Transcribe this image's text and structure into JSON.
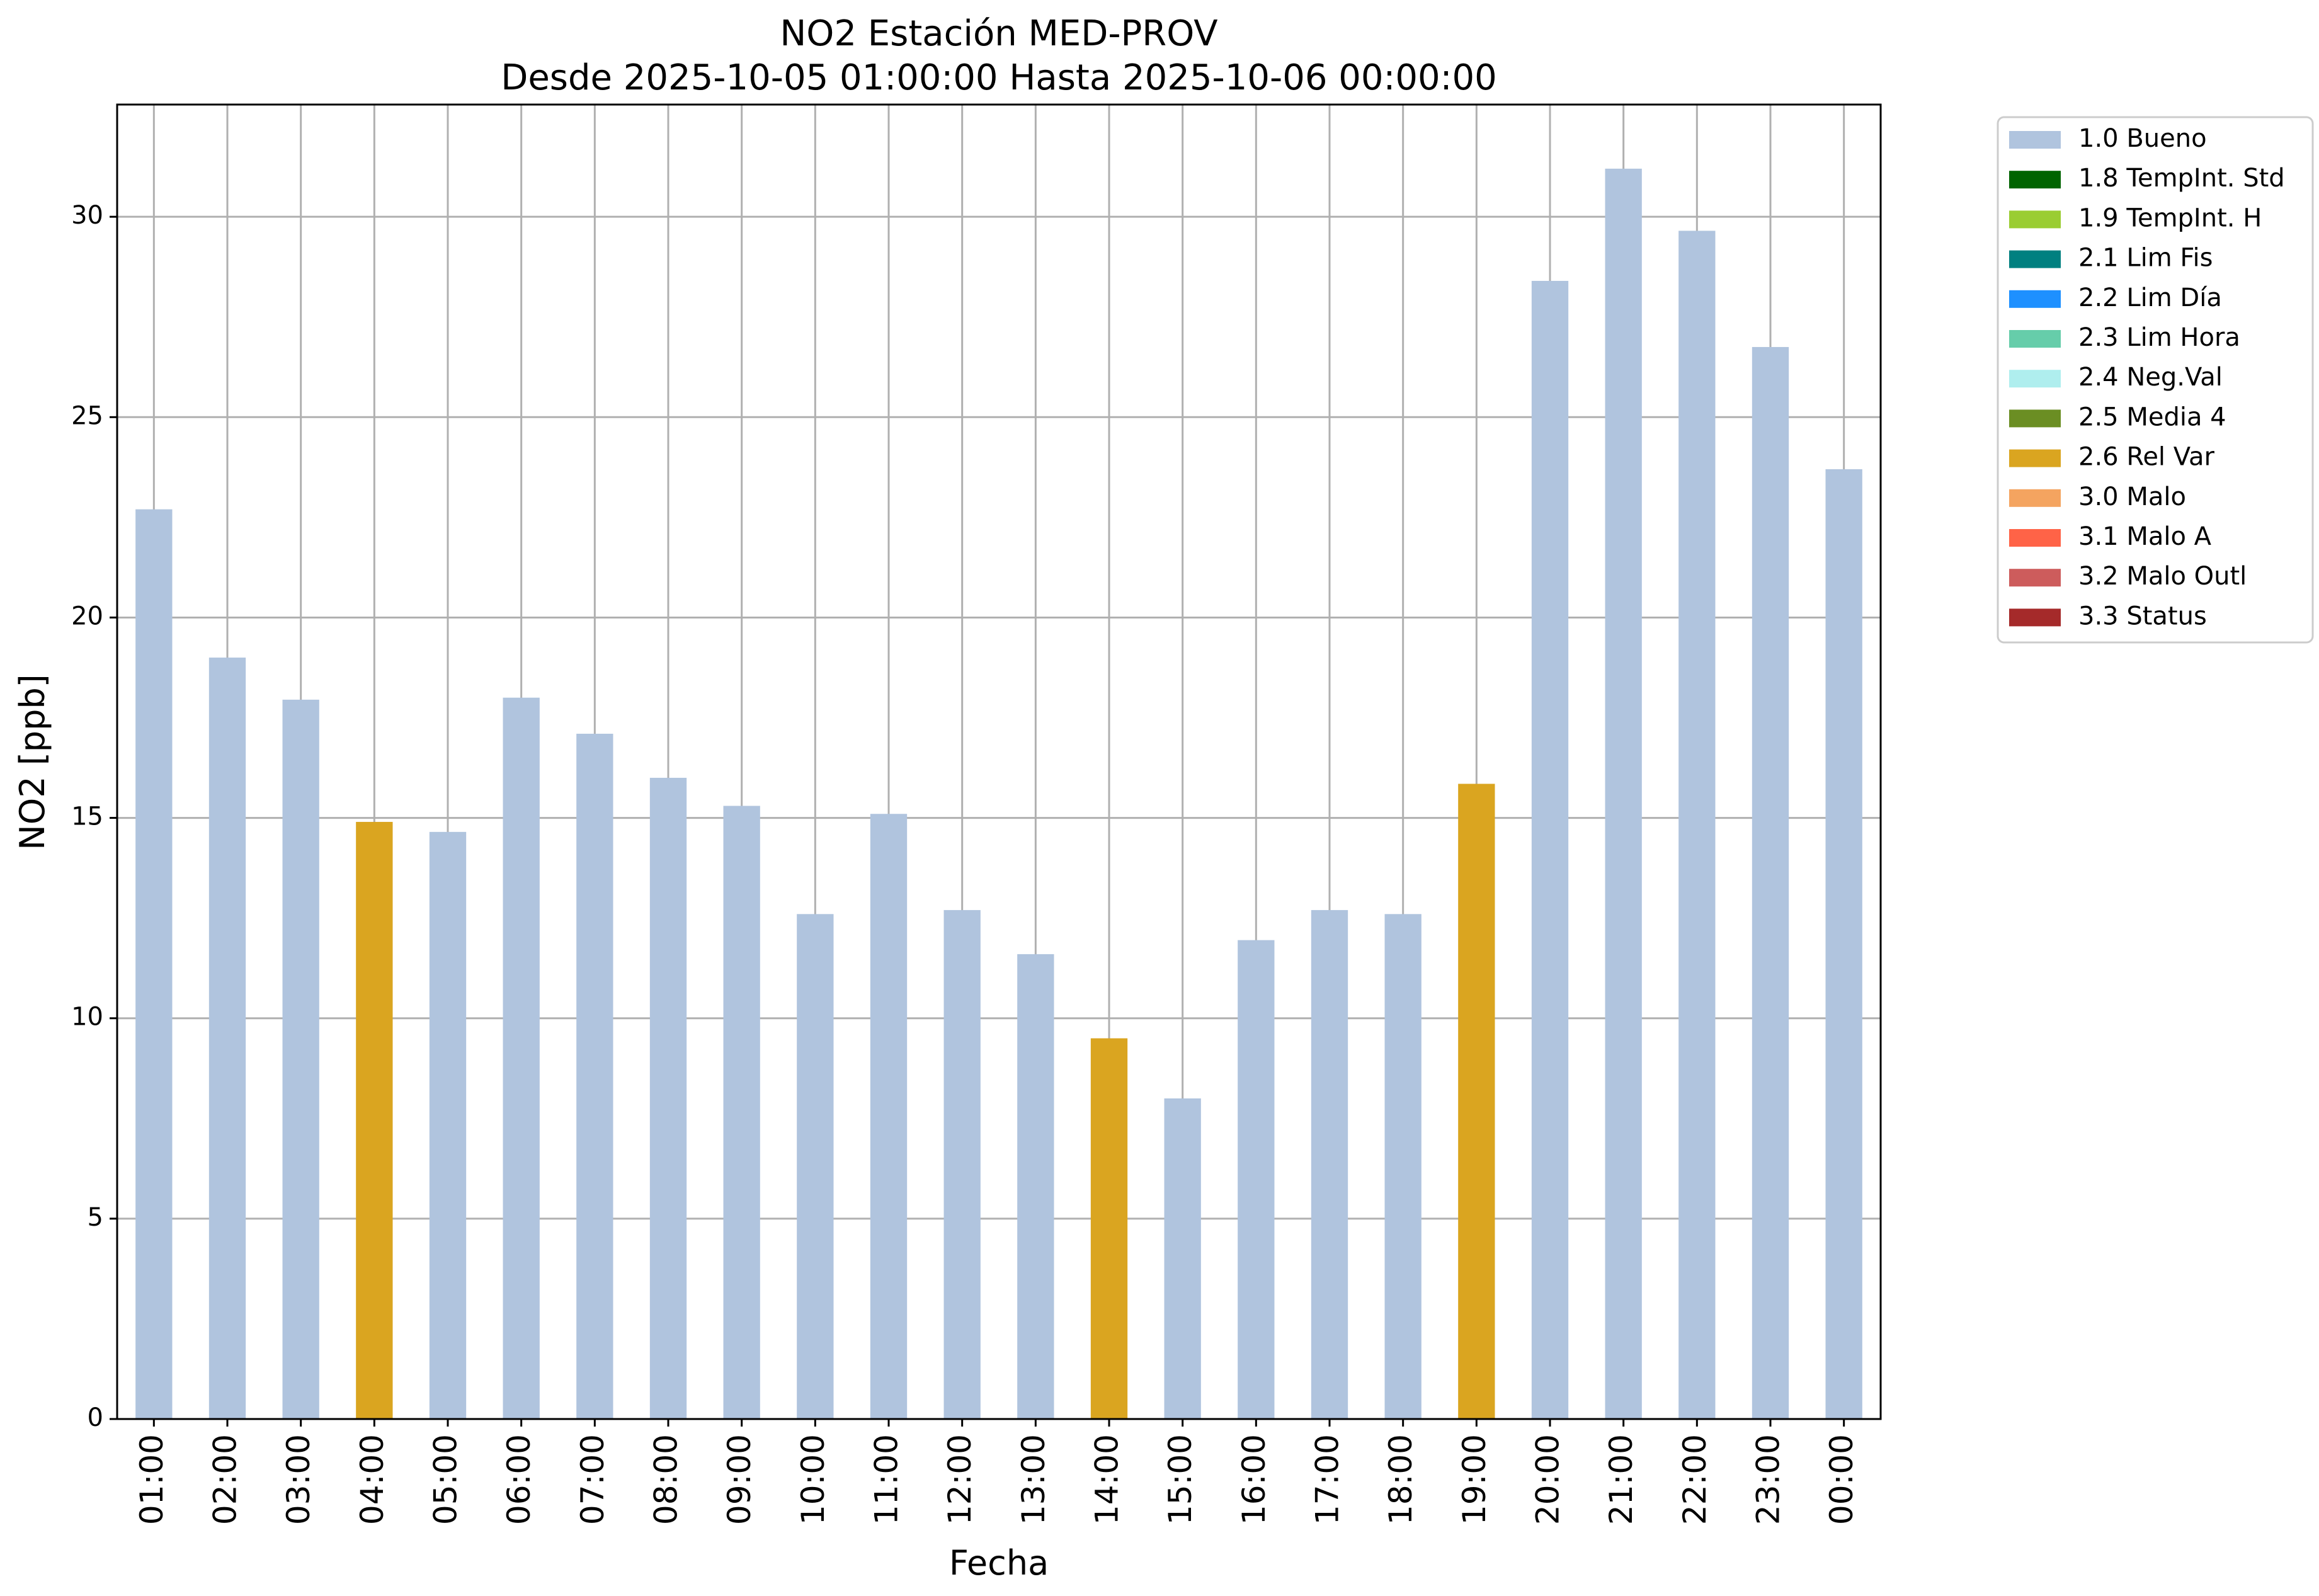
{
  "chart_data": {
    "type": "bar",
    "title": "NO2 Estación MED-PROV",
    "subtitle": "Desde 2025-10-05 01:00:00 Hasta 2025-10-06 00:00:00",
    "xlabel": "Fecha",
    "ylabel": "NO2 [ppb]",
    "ylim": [
      0,
      32.8
    ],
    "yticks": [
      0,
      5,
      10,
      15,
      20,
      25,
      30
    ],
    "grid": true,
    "legend_position": "outside-top-right",
    "categories": [
      "01:00",
      "02:00",
      "03:00",
      "04:00",
      "05:00",
      "06:00",
      "07:00",
      "08:00",
      "09:00",
      "10:00",
      "11:00",
      "12:00",
      "13:00",
      "14:00",
      "15:00",
      "16:00",
      "17:00",
      "18:00",
      "19:00",
      "20:00",
      "21:00",
      "22:00",
      "23:00",
      "00:00"
    ],
    "values": [
      22.7,
      19.0,
      17.95,
      14.9,
      14.65,
      18.0,
      17.1,
      16.0,
      15.3,
      12.6,
      15.1,
      12.7,
      11.6,
      9.5,
      8.0,
      11.95,
      12.7,
      12.6,
      15.85,
      28.4,
      31.2,
      29.65,
      26.75,
      23.7
    ],
    "flags": [
      "1.0 Bueno",
      "1.0 Bueno",
      "1.0 Bueno",
      "2.6 Rel Var",
      "1.0 Bueno",
      "1.0 Bueno",
      "1.0 Bueno",
      "1.0 Bueno",
      "1.0 Bueno",
      "1.0 Bueno",
      "1.0 Bueno",
      "1.0 Bueno",
      "1.0 Bueno",
      "2.6 Rel Var",
      "1.0 Bueno",
      "1.0 Bueno",
      "1.0 Bueno",
      "1.0 Bueno",
      "2.6 Rel Var",
      "1.0 Bueno",
      "1.0 Bueno",
      "1.0 Bueno",
      "1.0 Bueno",
      "1.0 Bueno"
    ],
    "legend": [
      {
        "name": "1.0 Bueno",
        "color": "#b0c4de"
      },
      {
        "name": "1.8 TempInt. Std",
        "color": "#006400"
      },
      {
        "name": "1.9 TempInt. H",
        "color": "#9acd32"
      },
      {
        "name": "2.1 Lim Fis",
        "color": "#008080"
      },
      {
        "name": "2.2 Lim Día",
        "color": "#1e90ff"
      },
      {
        "name": "2.3 Lim Hora",
        "color": "#66cdaa"
      },
      {
        "name": "2.4 Neg.Val",
        "color": "#afeeee"
      },
      {
        "name": "2.5 Media 4",
        "color": "#6b8e23"
      },
      {
        "name": "2.6 Rel Var",
        "color": "#daa520"
      },
      {
        "name": "3.0 Malo",
        "color": "#f4a460"
      },
      {
        "name": "3.1 Malo A",
        "color": "#ff6347"
      },
      {
        "name": "3.2 Malo Outl",
        "color": "#cd5c5c"
      },
      {
        "name": "3.3 Status",
        "color": "#a52a2a"
      }
    ]
  }
}
